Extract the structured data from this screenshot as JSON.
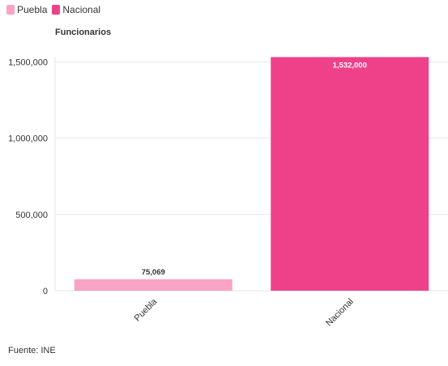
{
  "legend": [
    {
      "label": "Puebla",
      "color": "#f9a3c5"
    },
    {
      "label": "Nacional",
      "color": "#ef418a"
    }
  ],
  "source": "Fuente: INE",
  "chart_data": {
    "type": "bar",
    "title": "",
    "ylabel": "Funcionarios",
    "xlabel": "",
    "categories": [
      "Puebla",
      "Nacional"
    ],
    "values": [
      75069,
      1532000
    ],
    "data_labels": [
      "75,069",
      "1,532,000"
    ],
    "colors": [
      "#f9a3c5",
      "#ef418a"
    ],
    "ylim": [
      0,
      1500000
    ],
    "yticks": [
      0,
      500000,
      1000000,
      1500000
    ],
    "ytick_labels": [
      "0",
      "500,000",
      "1,000,000",
      "1,500,000"
    ],
    "grid": true,
    "legend_position": "top-left"
  }
}
